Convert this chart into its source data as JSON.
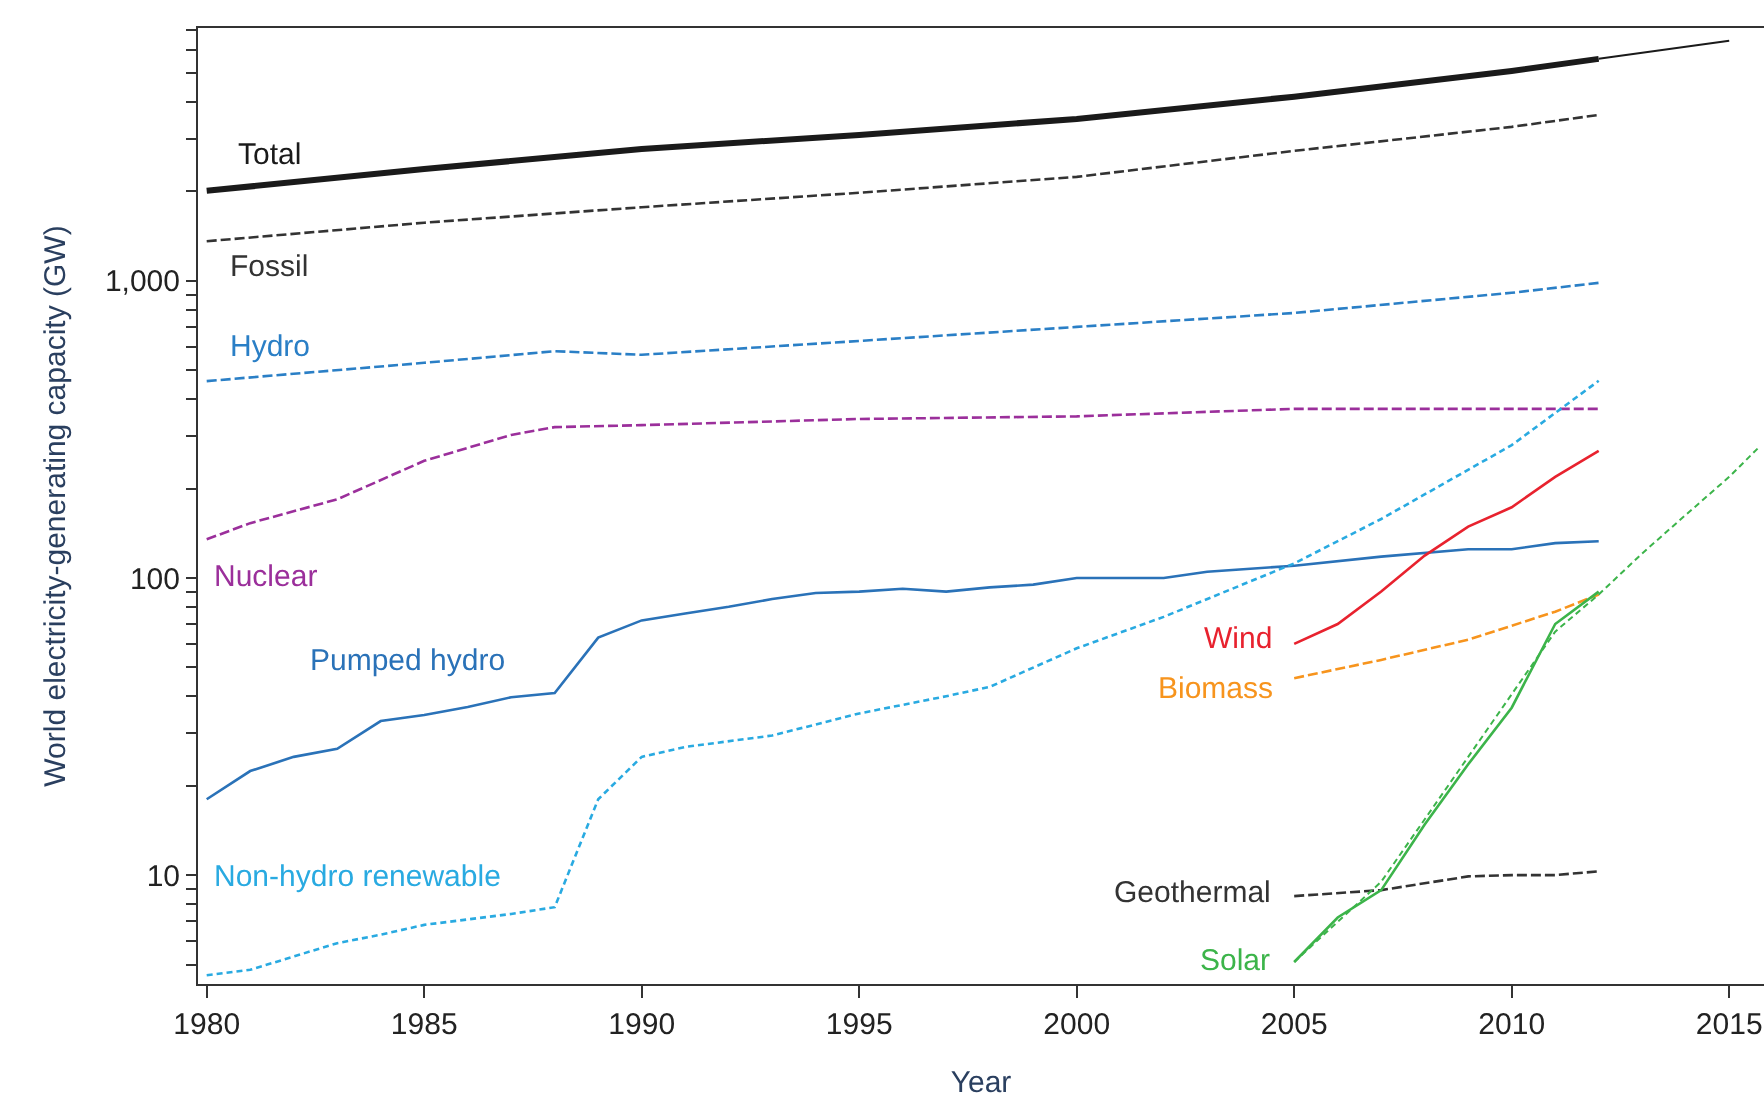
{
  "chart_data": {
    "type": "line",
    "xlabel": "Year",
    "ylabel": "World electricity-generating capacity (GW)",
    "log": "y",
    "legend": false,
    "xlim": [
      1979.8,
      2015.8
    ],
    "xticks": [
      1980,
      1985,
      1990,
      1995,
      2000,
      2005,
      2010,
      2015
    ],
    "ylim": [
      4.3,
      7100
    ],
    "yticks": [
      {
        "value": 5,
        "label": null
      },
      {
        "value": 6,
        "label": null
      },
      {
        "value": 7,
        "label": null
      },
      {
        "value": 8,
        "label": null
      },
      {
        "value": 9,
        "label": null
      },
      10,
      {
        "value": 20,
        "label": null
      },
      {
        "value": 30,
        "label": null
      },
      {
        "value": 40,
        "label": null
      },
      {
        "value": 50,
        "label": null
      },
      {
        "value": 60,
        "label": null
      },
      {
        "value": 70,
        "label": null
      },
      {
        "value": 80,
        "label": null
      },
      {
        "value": 90,
        "label": null
      },
      100,
      {
        "value": 200,
        "label": null
      },
      {
        "value": 300,
        "label": null
      },
      {
        "value": 400,
        "label": null
      },
      {
        "value": 500,
        "label": null
      },
      {
        "value": 600,
        "label": null
      },
      {
        "value": 700,
        "label": null
      },
      {
        "value": 800,
        "label": null
      },
      {
        "value": 900,
        "label": null
      },
      {
        "value": 1000,
        "label": "1,000"
      },
      {
        "value": 2000,
        "label": null
      },
      {
        "value": 3000,
        "label": null
      },
      {
        "value": 4000,
        "label": null
      },
      {
        "value": 5000,
        "label": null
      },
      {
        "value": 6000,
        "label": null
      },
      {
        "value": 7000,
        "label": null
      }
    ],
    "series": [
      {
        "name": "Total",
        "color": "#1a1a1a",
        "line_style": "solid",
        "x": [
          1980,
          1985,
          1990,
          1995,
          2000,
          2005,
          2010,
          2012
        ],
        "values": [
          2010,
          2380,
          2780,
          3100,
          3510,
          4170,
          5090,
          5590
        ]
      },
      {
        "color": "#1a1a1a",
        "line_style": "solid",
        "x": [
          2012,
          2015
        ],
        "values": [
          5590,
          6430
        ]
      },
      {
        "name": "Fossil",
        "color": "#333333",
        "line_style": "dashed",
        "x": [
          1980,
          1985,
          1990,
          1995,
          2000,
          2005,
          2010,
          2012
        ],
        "values": [
          1360,
          1570,
          1770,
          1980,
          2240,
          2740,
          3300,
          3620
        ]
      },
      {
        "name": "Hydro",
        "color": "#2a7fc6",
        "line_style": "dashed",
        "x": [
          1980,
          1985,
          1988,
          1990,
          1995,
          2000,
          2005,
          2010,
          2012
        ],
        "values": [
          460,
          530,
          580,
          564,
          628,
          700,
          780,
          912,
          985
        ]
      },
      {
        "name": "Nuclear",
        "color": "#9b2f9b",
        "line_style": "dashed",
        "x": [
          1980,
          1981,
          1983,
          1985,
          1987,
          1988,
          1990,
          1995,
          2000,
          2005,
          2012
        ],
        "values": [
          135,
          153,
          184,
          248,
          303,
          322,
          327,
          343,
          350,
          371,
          371
        ]
      },
      {
        "name": "Pumped hydro",
        "color": "#2a72b8",
        "line_style": "solid",
        "x": [
          1980,
          1981,
          1982,
          1983,
          1984,
          1985,
          1986,
          1987,
          1988,
          1989,
          1990,
          1991,
          1992,
          1993,
          1994,
          1995,
          1996,
          1997,
          1998,
          1999,
          2000,
          2002,
          2003,
          2005,
          2007,
          2009,
          2010,
          2011,
          2012
        ],
        "values": [
          18,
          22.4,
          25,
          26.6,
          33,
          34.6,
          36.8,
          39.7,
          41,
          63,
          72,
          76,
          80,
          85,
          89,
          90,
          92,
          90,
          93,
          95,
          100,
          100,
          105,
          110,
          118,
          125,
          125,
          131,
          133
        ]
      },
      {
        "name": "Non-hydro renewable",
        "color": "#29aae1",
        "line_style": "dotted",
        "x": [
          1980,
          1981,
          1983,
          1984,
          1985,
          1987,
          1988,
          1989,
          1990,
          1991,
          1993,
          1995,
          1997,
          1998,
          2000,
          2002,
          2005,
          2007,
          2010,
          2012
        ],
        "values": [
          4.6,
          4.8,
          5.9,
          6.3,
          6.8,
          7.4,
          7.8,
          18,
          25,
          27,
          29.5,
          35,
          40,
          43,
          58,
          74,
          112,
          158,
          280,
          461
        ]
      },
      {
        "name": "Wind",
        "color": "#e8222e",
        "line_style": "solid",
        "x": [
          2005,
          2006,
          2007,
          2008,
          2009,
          2010,
          2011,
          2012
        ],
        "values": [
          60,
          70,
          90,
          119,
          149,
          173,
          219,
          268
        ]
      },
      {
        "name": "Biomass",
        "color": "#f7941d",
        "line_style": "dashed",
        "x": [
          2005,
          2007,
          2009,
          2011,
          2012
        ],
        "values": [
          46,
          53,
          62,
          77,
          88
        ]
      },
      {
        "name": "Geothermal",
        "color": "#333333",
        "line_style": "dashed",
        "x": [
          2005,
          2007,
          2009,
          2010,
          2011,
          2012
        ],
        "values": [
          8.5,
          8.9,
          9.9,
          10,
          10,
          10.3
        ]
      },
      {
        "name": "Solar",
        "color": "#3cb44a",
        "line_style": "solid",
        "x": [
          2005,
          2006,
          2007,
          2008,
          2009,
          2010,
          2011,
          2012
        ],
        "values": [
          5.1,
          7.2,
          8.9,
          14.8,
          23.6,
          36.6,
          70,
          90
        ]
      },
      {
        "color": "#3cb44a",
        "line_style": "dotted",
        "x": [
          2005,
          2007,
          2009,
          2011,
          2012,
          2013,
          2014,
          2015,
          2015.7
        ],
        "values": [
          5.1,
          9.5,
          25,
          66,
          88,
          121,
          163,
          219,
          277
        ]
      }
    ]
  }
}
